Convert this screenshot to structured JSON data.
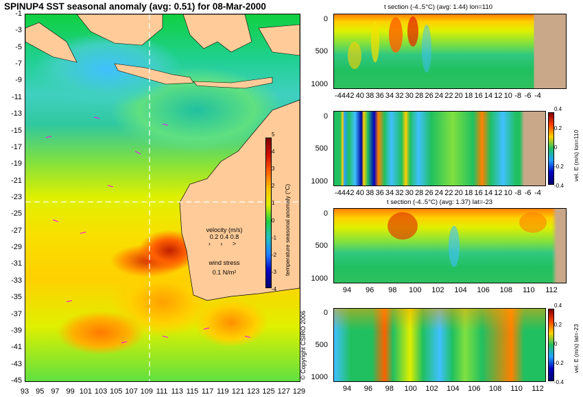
{
  "title": "SPINUP4 SST seasonal anomaly (avg: 0.51) for 08-Mar-2000",
  "map": {
    "lat_ticks": [
      "-1",
      "-3",
      "-5",
      "-7",
      "-9",
      "-11",
      "-13",
      "-15",
      "-17",
      "-19",
      "-21",
      "-23",
      "-25",
      "-27",
      "-29",
      "-31",
      "-33",
      "-35",
      "-37",
      "-39",
      "-41",
      "-43",
      "-45"
    ],
    "lon_ticks": [
      "93",
      "95",
      "97",
      "99",
      "101",
      "103",
      "105",
      "107",
      "109",
      "111",
      "113",
      "115",
      "117",
      "119",
      "121",
      "123",
      "125",
      "127",
      "129"
    ],
    "colorbar": {
      "label": "temperature seasonal anomaly (°C)",
      "ticks": [
        "5",
        "4",
        "3",
        "2",
        "1",
        "0",
        "-1",
        "-2",
        "-3",
        "-4"
      ]
    },
    "velocity_legend": {
      "label": "velocity (m/s)",
      "values": "0.2 0.4 0.8"
    },
    "wind_legend": {
      "label": "wind stress",
      "value": "0.1 N/m²"
    },
    "colors": {
      "land": "#ffcc99",
      "vector": "#ff00ff"
    }
  },
  "panels": [
    {
      "title": "t section (-4..5°C) (avg: 1.44) lon=110",
      "y_ticks": [
        "0",
        "500",
        "1000"
      ],
      "x_ticks": [
        "-44",
        "42",
        "40",
        "38",
        "36",
        "34",
        "32",
        "30",
        "28",
        "26",
        "24",
        "22",
        "20",
        "18",
        "16",
        "14",
        "12",
        "10",
        "-8",
        "-6",
        "-4"
      ]
    },
    {
      "title": "",
      "y_ticks": [
        "0",
        "500",
        "1000"
      ],
      "x_ticks": [
        "-44",
        "42",
        "40",
        "38",
        "36",
        "34",
        "32",
        "30",
        "28",
        "26",
        "24",
        "22",
        "20",
        "18",
        "16",
        "14",
        "12",
        "10",
        "-8",
        "-6",
        "-4"
      ],
      "colorbar_label": "vel. E (m/s) lon=110",
      "colorbar_ticks": [
        "0.4",
        "0.2",
        "0",
        "-0.2",
        "-0.4"
      ]
    },
    {
      "title": "t section (-4..5°C) (avg: 1.37) lat=-23",
      "y_ticks": [
        "0",
        "500",
        "1000"
      ],
      "x_ticks": [
        "94",
        "96",
        "98",
        "100",
        "102",
        "104",
        "106",
        "108",
        "110",
        "112"
      ]
    },
    {
      "title": "",
      "y_ticks": [
        "0",
        "500",
        "1000"
      ],
      "x_ticks": [
        "94",
        "96",
        "98",
        "100",
        "102",
        "104",
        "106",
        "108",
        "110",
        "112"
      ],
      "colorbar_label": "vel. E (m/s) lat=-23",
      "colorbar_ticks": [
        "0.4",
        "0.2",
        "0",
        "-0.2",
        "-0.4"
      ]
    }
  ],
  "copyright": "© Copyright CSIRO 2006"
}
